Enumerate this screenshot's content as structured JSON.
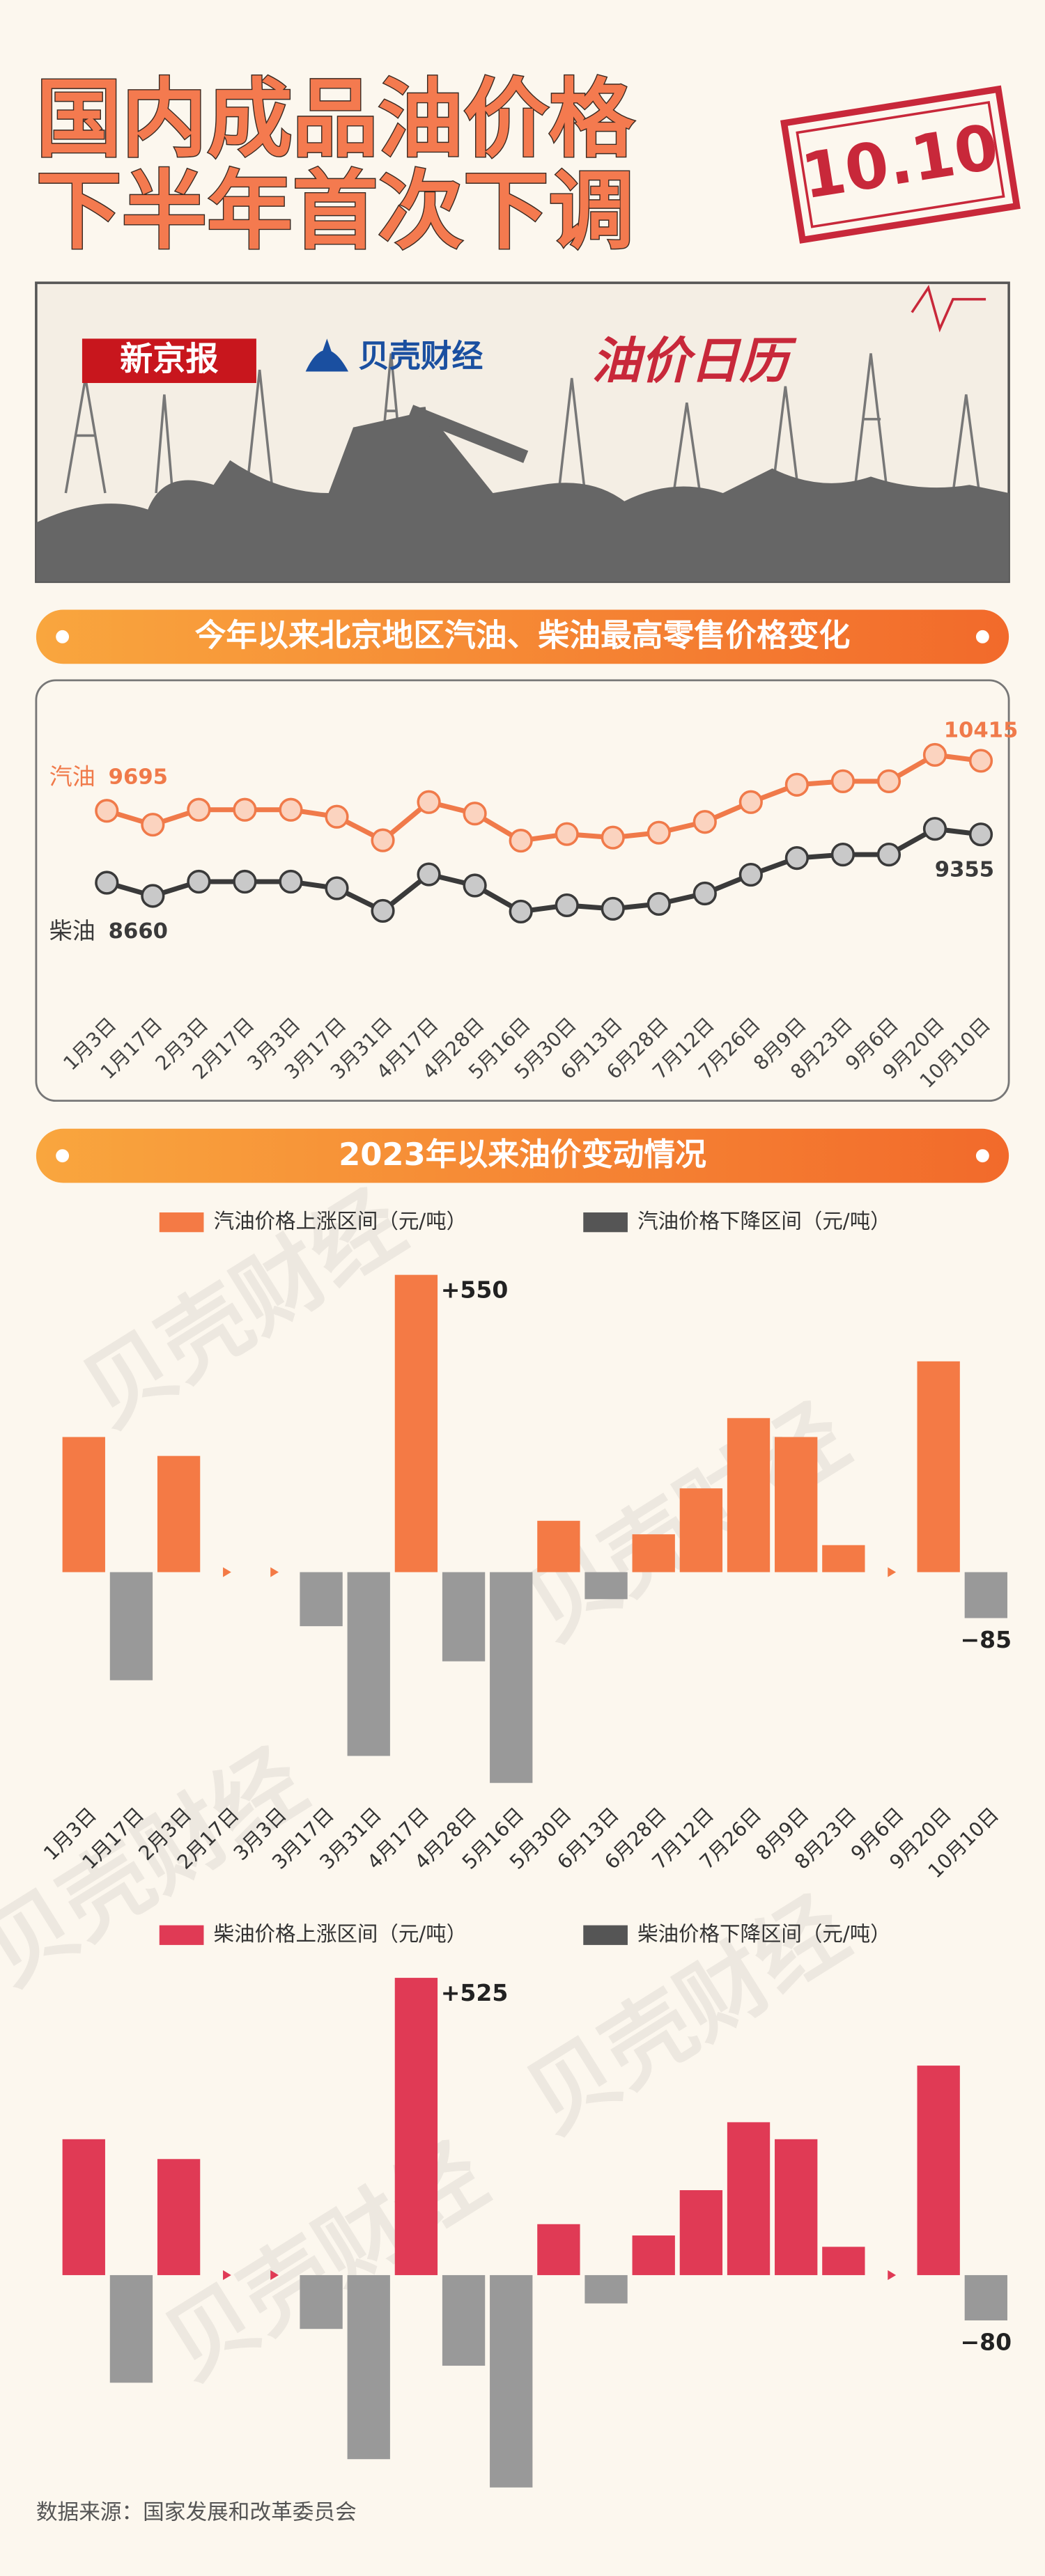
{
  "header": {
    "title_lines": [
      "国内成品油价格",
      "下半年首次下调"
    ],
    "stamp": "10.10"
  },
  "banner": {
    "brand": "新京报",
    "partner": "贝壳财经",
    "label": "油价日历"
  },
  "watermark": "贝壳财经",
  "chart_data": [
    {
      "type": "line",
      "title": "今年以来北京地区汽油、柴油最高零售价格变化",
      "categories": [
        "1月3日",
        "1月17日",
        "2月3日",
        "2月17日",
        "3月3日",
        "3月17日",
        "3月31日",
        "4月17日",
        "4月28日",
        "5月16日",
        "5月30日",
        "6月13日",
        "6月28日",
        "7月12日",
        "7月26日",
        "8月9日",
        "8月23日",
        "9月6日",
        "9月20日",
        "10月10日"
      ],
      "series": [
        {
          "name": "汽油",
          "color": "#f07a4a",
          "values": [
            9695,
            9495,
            9710,
            9710,
            9710,
            9610,
            9270,
            9820,
            9655,
            9265,
            9360,
            9310,
            9380,
            9535,
            9820,
            10070,
            10120,
            10120,
            10500,
            10415
          ]
        },
        {
          "name": "柴油",
          "color": "#3a3a3a",
          "values": [
            8660,
            8470,
            8675,
            8675,
            8675,
            8580,
            8255,
            8780,
            8620,
            8245,
            8335,
            8285,
            8355,
            8505,
            8775,
            9015,
            9065,
            9065,
            9435,
            9355
          ]
        }
      ]
    },
    {
      "type": "bar",
      "title": "2023年以来油价变动情况",
      "categories": [
        "1月3日",
        "1月17日",
        "2月3日",
        "2月17日",
        "3月3日",
        "3月17日",
        "3月31日",
        "4月17日",
        "4月28日",
        "5月16日",
        "5月30日",
        "6月13日",
        "6月28日",
        "7月12日",
        "7月26日",
        "8月9日",
        "8月23日",
        "9月6日",
        "9月20日",
        "10月10日"
      ],
      "legend": {
        "up": "汽油价格上涨区间（元/吨）",
        "down": "汽油价格下降区间（元/吨）"
      },
      "up_color": "#f47a45",
      "down_color": "#999999",
      "legend_down_color": "#555555",
      "values": [
        250,
        -200,
        215,
        0,
        0,
        -100,
        -340,
        550,
        -165,
        -390,
        95,
        -50,
        70,
        155,
        285,
        250,
        50,
        0,
        390,
        -85
      ],
      "value_labels": [
        null,
        null,
        null,
        null,
        null,
        null,
        null,
        "+550",
        null,
        null,
        null,
        null,
        null,
        null,
        null,
        null,
        null,
        null,
        null,
        "−85"
      ]
    },
    {
      "type": "bar",
      "legend": {
        "up": "柴油价格上涨区间（元/吨）",
        "down": "柴油价格下降区间（元/吨）"
      },
      "up_color": "#e03a55",
      "down_color": "#999999",
      "legend_down_color": "#555555",
      "values": [
        240,
        -190,
        205,
        0,
        0,
        -95,
        -325,
        525,
        -160,
        -375,
        90,
        -50,
        70,
        150,
        270,
        240,
        50,
        0,
        370,
        -80
      ],
      "value_labels": [
        null,
        null,
        null,
        null,
        null,
        null,
        null,
        "+525",
        null,
        null,
        null,
        null,
        null,
        null,
        null,
        null,
        null,
        null,
        null,
        "−80"
      ]
    }
  ],
  "source": "数据来源：国家发展和改革委员会"
}
